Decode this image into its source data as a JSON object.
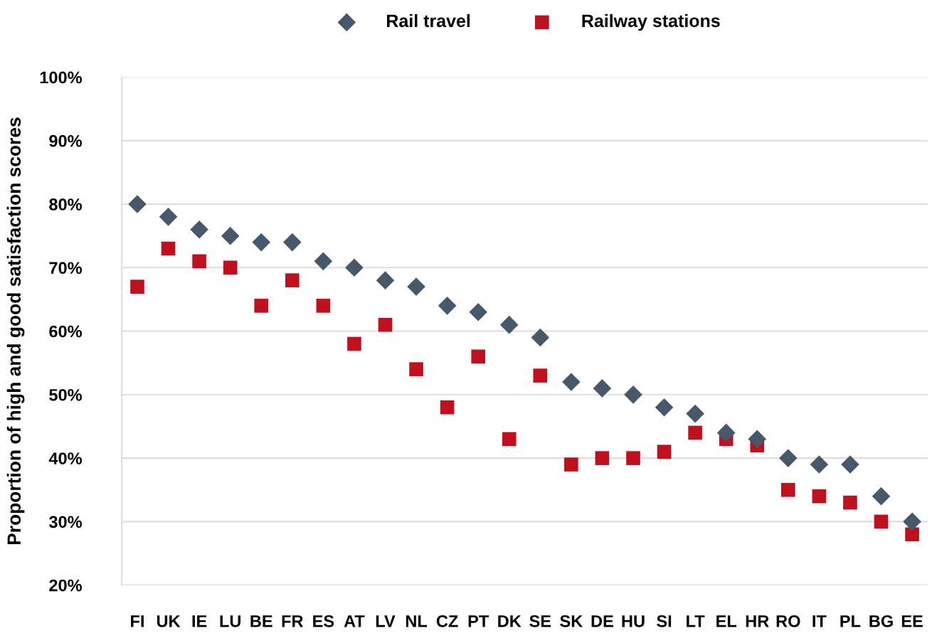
{
  "chart_data": {
    "type": "scatter",
    "ylabel": "Proportion of high and good satisfaction scores",
    "categories": [
      "FI",
      "UK",
      "IE",
      "LU",
      "BE",
      "FR",
      "ES",
      "AT",
      "LV",
      "NL",
      "CZ",
      "PT",
      "DK",
      "SE",
      "SK",
      "DE",
      "HU",
      "SI",
      "LT",
      "EL",
      "HR",
      "RO",
      "IT",
      "PL",
      "BG",
      "EE"
    ],
    "series": [
      {
        "name": "Rail travel",
        "color": "#46596a",
        "marker": "diamond",
        "values": [
          80,
          78,
          76,
          75,
          74,
          74,
          71,
          70,
          68,
          67,
          64,
          63,
          61,
          59,
          52,
          51,
          50,
          48,
          47,
          44,
          43,
          40,
          39,
          39,
          34,
          30
        ]
      },
      {
        "name": "Railway stations",
        "color": "#c0101e",
        "marker": "square",
        "values": [
          67,
          73,
          71,
          70,
          64,
          68,
          64,
          58,
          61,
          54,
          48,
          56,
          43,
          53,
          39,
          40,
          40,
          41,
          44,
          43,
          42,
          35,
          34,
          33,
          30,
          28
        ]
      }
    ],
    "ylim": [
      20,
      100
    ],
    "yticks": [
      {
        "value": 20,
        "label": "20%"
      },
      {
        "value": 30,
        "label": "30%"
      },
      {
        "value": 40,
        "label": "40%"
      },
      {
        "value": 50,
        "label": "50%"
      },
      {
        "value": 60,
        "label": "60%"
      },
      {
        "value": 70,
        "label": "70%"
      },
      {
        "value": 80,
        "label": "80%"
      },
      {
        "value": 90,
        "label": "90%"
      },
      {
        "value": 100,
        "label": "100%"
      }
    ],
    "grid": "y",
    "legend": "top"
  }
}
